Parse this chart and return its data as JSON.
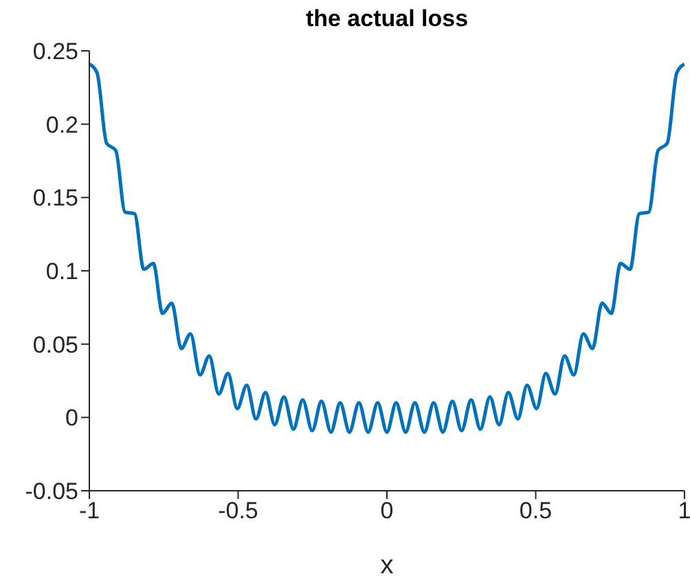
{
  "chart_data": {
    "type": "line",
    "title": "the actual loss",
    "xlabel": "x",
    "color": "#0072bd",
    "x": [
      -1,
      -0.974,
      -0.942,
      -0.911,
      -0.88,
      -0.848,
      -0.817,
      -0.785,
      -0.754,
      -0.723,
      -0.691,
      -0.66,
      -0.628,
      -0.597,
      -0.565,
      -0.534,
      -0.503,
      -0.471,
      -0.44,
      -0.408,
      -0.377,
      -0.346,
      -0.314,
      -0.283,
      -0.251,
      -0.22,
      -0.188,
      -0.157,
      -0.126,
      -0.094,
      -0.063,
      -0.031,
      0,
      0.031,
      0.063,
      0.094,
      0.126,
      0.157,
      0.188,
      0.22,
      0.251,
      0.283,
      0.314,
      0.346,
      0.377,
      0.408,
      0.44,
      0.471,
      0.503,
      0.534,
      0.565,
      0.597,
      0.628,
      0.66,
      0.691,
      0.723,
      0.754,
      0.785,
      0.817,
      0.848,
      0.88,
      0.911,
      0.942,
      0.974,
      1
    ],
    "values": [
      0.241,
      0.235,
      0.187,
      0.182,
      0.14,
      0.139,
      0.101,
      0.105,
      0.071,
      0.078,
      0.047,
      0.057,
      0.029,
      0.042,
      0.016,
      0.03,
      0.006,
      0.022,
      -0.001,
      0.017,
      -0.005,
      0.014,
      -0.008,
      0.012,
      -0.009,
      0.011,
      -0.01,
      0.01,
      -0.01,
      0.01,
      -0.01,
      0.01,
      -0.01,
      0.01,
      -0.01,
      0.01,
      -0.01,
      0.01,
      -0.01,
      0.011,
      -0.009,
      0.012,
      -0.008,
      0.014,
      -0.005,
      0.017,
      -0.001,
      0.022,
      0.006,
      0.03,
      0.016,
      0.042,
      0.029,
      0.057,
      0.047,
      0.078,
      0.071,
      0.105,
      0.101,
      0.139,
      0.14,
      0.182,
      0.187,
      0.235,
      0.241
    ],
    "xlim": [
      -1,
      1
    ],
    "xticks": [
      -1,
      -0.5,
      0,
      0.5,
      1
    ],
    "ylim": [
      -0.05,
      0.25
    ],
    "yticks": [
      -0.05,
      0,
      0.05,
      0.1,
      0.15,
      0.2,
      0.25
    ]
  }
}
